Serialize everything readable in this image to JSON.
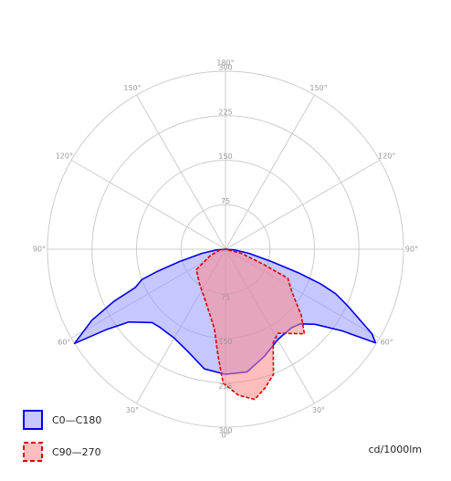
{
  "chart_data": {
    "type": "polar",
    "rlim": [
      0,
      300
    ],
    "rticks": [
      75,
      150,
      225,
      300
    ],
    "angle_ticks": [
      {
        "value": 180,
        "label": "180°"
      },
      {
        "value": -150,
        "label": "150°"
      },
      {
        "value": 150,
        "label": "150°"
      },
      {
        "value": -120,
        "label": "120°"
      },
      {
        "value": 120,
        "label": "120°"
      },
      {
        "value": -90,
        "label": "90°"
      },
      {
        "value": 90,
        "label": "90°"
      },
      {
        "value": -60,
        "label": "60°"
      },
      {
        "value": 60,
        "label": "60°"
      },
      {
        "value": -30,
        "label": "30°"
      },
      {
        "value": 30,
        "label": "30°"
      },
      {
        "value": 0,
        "label": "0°"
      }
    ],
    "grid": true,
    "unit_label": "cd/1000lm",
    "series": [
      {
        "name": "C0—C180",
        "color": "#0000ee",
        "fill": "#9999ff",
        "line_style": "solid",
        "angles": [
          -90,
          -85,
          -80,
          -75,
          -72,
          -70,
          -67,
          -65,
          -62,
          -58,
          -56,
          -53,
          -45,
          -40,
          -30,
          -20,
          -10,
          0,
          10,
          20,
          30,
          40,
          45,
          50,
          55,
          58,
          60,
          65,
          68,
          70,
          72,
          75,
          80,
          85,
          90
        ],
        "values": [
          0,
          15,
          40,
          80,
          120,
          150,
          165,
          207,
          255,
          300,
          243,
          204,
          175,
          172,
          173,
          184,
          205,
          211,
          210,
          192,
          176,
          173,
          178,
          197,
          240,
          298,
          285,
          228,
          200,
          170,
          130,
          80,
          40,
          15,
          0
        ]
      },
      {
        "name": "C90—270",
        "color": "#dd0000",
        "fill": "#ff8888",
        "line_style": "dashed",
        "angles": [
          -90,
          -80,
          -67,
          -55,
          -38,
          -21,
          -8,
          -4,
          -1,
          5,
          11,
          16,
          21,
          27,
          32,
          43,
          49,
          57,
          65,
          68,
          75,
          90
        ],
        "values": [
          0,
          10,
          28,
          60,
          72,
          94,
          135,
          180,
          226,
          247,
          258,
          243,
          226,
          177,
          167,
          195,
          169,
          134,
          116,
          71,
          29,
          0
        ]
      }
    ]
  }
}
